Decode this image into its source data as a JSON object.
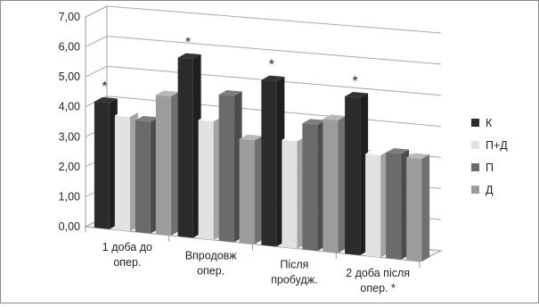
{
  "chart_data": {
    "type": "bar",
    "title": "",
    "xlabel": "",
    "ylabel": "",
    "ylim": [
      0,
      7
    ],
    "yticks": [
      "0,00",
      "1,00",
      "2,00",
      "3,00",
      "4,00",
      "5,00",
      "6,00",
      "7,00"
    ],
    "categories": [
      [
        "1 доба до",
        "опер."
      ],
      [
        "Впродовж",
        "опер."
      ],
      [
        "Після",
        "пробудж."
      ],
      [
        "2 доба після",
        "опер. *"
      ]
    ],
    "series": [
      {
        "name": "К",
        "color": "#2b2b2b",
        "values": [
          4.2,
          5.9,
          5.4,
          5.1
        ]
      },
      {
        "name": "П+Д",
        "color": "#e2e2e2",
        "values": [
          3.8,
          3.9,
          3.5,
          3.3
        ]
      },
      {
        "name": "П",
        "color": "#6b6b6b",
        "values": [
          3.7,
          4.8,
          4.1,
          3.4
        ]
      },
      {
        "name": "Д",
        "color": "#9c9c9c",
        "values": [
          4.6,
          3.4,
          4.3,
          3.3
        ]
      }
    ],
    "annotations": [
      {
        "category": 0,
        "series": "К",
        "text": "*"
      },
      {
        "category": 1,
        "series": "К",
        "text": "*"
      },
      {
        "category": 2,
        "series": "К",
        "text": "*"
      },
      {
        "category": 3,
        "series": "К",
        "text": "*"
      }
    ],
    "grid": true,
    "legend": "right",
    "style": "3d-perspective"
  }
}
